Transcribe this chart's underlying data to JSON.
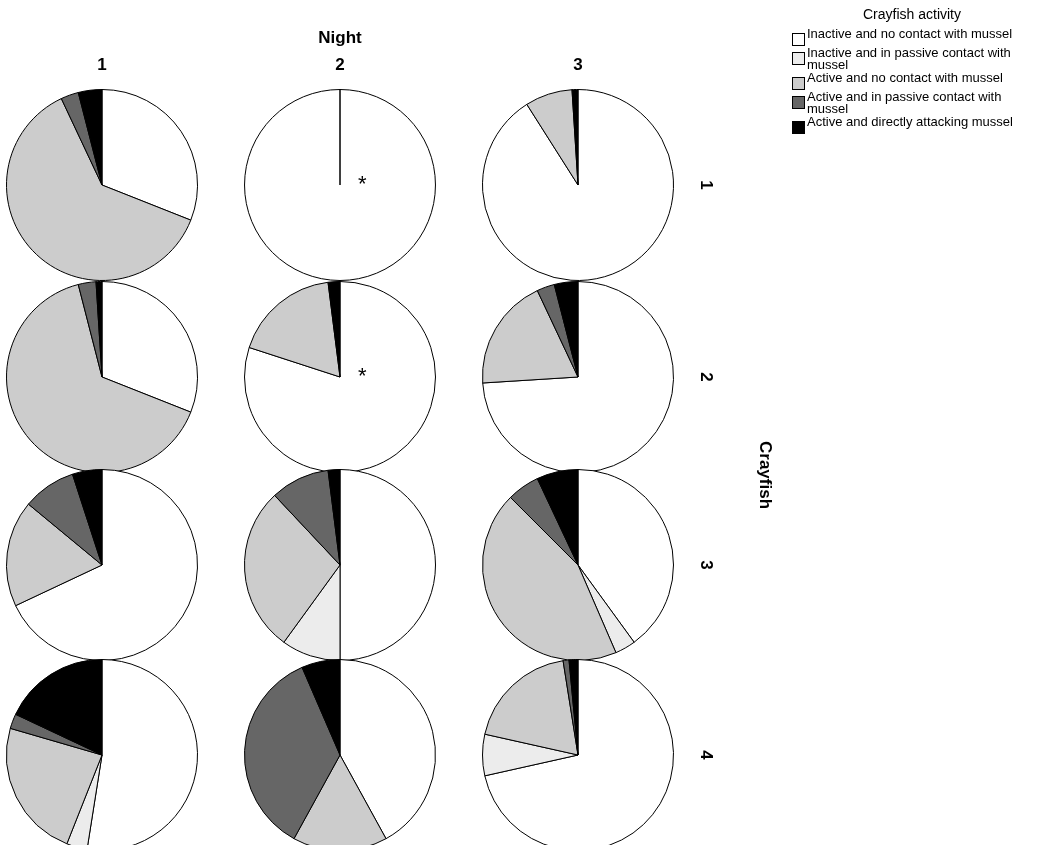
{
  "chart_data": [
    {
      "type": "other",
      "title": "Night",
      "y2label": "Crayfish"
    },
    {
      "type": "pie",
      "title": "1",
      "categories": [
        "Inactive and no contact with mussel",
        "Inactive and in passive contact with mussel",
        "Active and no contact with mussel",
        "Active and in passive contact with mussel",
        "Active and directly attacking mussel"
      ],
      "values": [
        31,
        0,
        62,
        3,
        4
      ],
      "colors": [
        "#ffffff",
        "#ececec",
        "#cccccc",
        "#666666",
        "#000000"
      ],
      "legend": "top right",
      "legend_title": "Crayfish activity"
    },
    {
      "type": "pie",
      "title": "2",
      "values": [
        100,
        0,
        0,
        0,
        0
      ],
      "colors": [
        "#ffffff",
        "#ececec",
        "#cccccc",
        "#666666",
        "#000000"
      ],
      "annotations": [
        "*"
      ]
    },
    {
      "type": "pie",
      "title": "3",
      "y2label": "1",
      "values": [
        91,
        0,
        8,
        0,
        1
      ],
      "colors": [
        "#ffffff",
        "#ececec",
        "#cccccc",
        "#666666",
        "#000000"
      ]
    },
    {
      "type": "pie",
      "values": [
        31,
        0,
        65,
        3,
        1
      ],
      "colors": [
        "#ffffff",
        "#ececec",
        "#cccccc",
        "#666666",
        "#000000"
      ]
    },
    {
      "type": "pie",
      "values": [
        80,
        0,
        18,
        0,
        2
      ],
      "colors": [
        "#ffffff",
        "#ececec",
        "#cccccc",
        "#666666",
        "#000000"
      ],
      "annotations": [
        "*"
      ]
    },
    {
      "type": "pie",
      "y2label": "2",
      "values": [
        74,
        0,
        19,
        3,
        4
      ],
      "colors": [
        "#ffffff",
        "#ececec",
        "#cccccc",
        "#666666",
        "#000000"
      ]
    },
    {
      "type": "pie",
      "values": [
        68,
        0,
        18,
        9,
        5
      ],
      "colors": [
        "#ffffff",
        "#ececec",
        "#cccccc",
        "#666666",
        "#000000"
      ]
    },
    {
      "type": "pie",
      "values": [
        50,
        10,
        28,
        10,
        2
      ],
      "colors": [
        "#ffffff",
        "#ececec",
        "#cccccc",
        "#666666",
        "#000000"
      ]
    },
    {
      "type": "pie",
      "y2label": "3",
      "values": [
        40,
        3.5,
        44,
        5.5,
        7
      ],
      "colors": [
        "#ffffff",
        "#ececec",
        "#cccccc",
        "#666666",
        "#000000"
      ]
    },
    {
      "type": "pie",
      "values": [
        52.5,
        3.5,
        23.5,
        2.5,
        18
      ],
      "colors": [
        "#ffffff",
        "#ececec",
        "#cccccc",
        "#666666",
        "#000000"
      ]
    },
    {
      "type": "pie",
      "values": [
        42,
        0,
        16,
        35.5,
        6.5
      ],
      "colors": [
        "#ffffff",
        "#ececec",
        "#cccccc",
        "#666666",
        "#000000"
      ]
    },
    {
      "type": "pie",
      "y2label": "4",
      "values": [
        71.5,
        7,
        19,
        1,
        1.5
      ],
      "colors": [
        "#ffffff",
        "#ececec",
        "#cccccc",
        "#666666",
        "#000000"
      ]
    }
  ]
}
